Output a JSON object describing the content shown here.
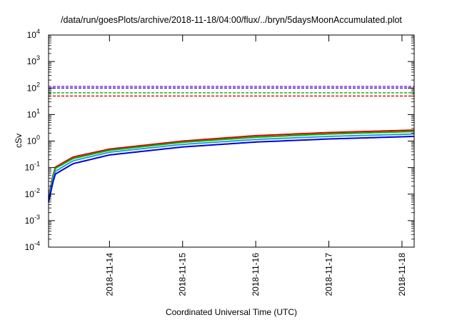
{
  "chart_data": {
    "type": "line",
    "title": "/data/run/goesPlots/archive/2018-11-18/04:00/flux/../bryn/5daysMoonAccumulated.plot",
    "xlabel": "Coordinated Universal Time (UTC)",
    "ylabel": "cSv",
    "y_scale": "log",
    "ylim": [
      0.0001,
      10000
    ],
    "y_ticks": [
      {
        "value": 0.0001,
        "base": "10",
        "exp": "-4"
      },
      {
        "value": 0.001,
        "base": "10",
        "exp": "-3"
      },
      {
        "value": 0.01,
        "base": "10",
        "exp": "-2"
      },
      {
        "value": 0.1,
        "base": "10",
        "exp": "-1"
      },
      {
        "value": 1,
        "base": "10",
        "exp": "0"
      },
      {
        "value": 10,
        "base": "10",
        "exp": "1"
      },
      {
        "value": 100,
        "base": "10",
        "exp": "2"
      },
      {
        "value": 1000,
        "base": "10",
        "exp": "3"
      },
      {
        "value": 10000,
        "base": "10",
        "exp": "4"
      }
    ],
    "xlim": [
      "2018-11-13T04:00",
      "2018-11-18T04:00"
    ],
    "x_ticks": [
      "2018-11-14",
      "2018-11-15",
      "2018-11-16",
      "2018-11-17",
      "2018-11-18"
    ],
    "grid": false,
    "legend": "none",
    "series": [
      {
        "color": "#e00000",
        "style": "solid",
        "x": [
          "2018-11-13T04:00",
          "2018-11-13T06:00",
          "2018-11-13T12:00",
          "2018-11-14T00:00",
          "2018-11-15T00:00",
          "2018-11-16T00:00",
          "2018-11-17T00:00",
          "2018-11-18T04:00"
        ],
        "values": [
          0.008,
          0.1,
          0.25,
          0.5,
          1.0,
          1.6,
          2.1,
          2.6
        ]
      },
      {
        "color": "#00b000",
        "style": "solid",
        "x": [
          "2018-11-13T04:00",
          "2018-11-13T06:00",
          "2018-11-13T12:00",
          "2018-11-14T00:00",
          "2018-11-15T00:00",
          "2018-11-16T00:00",
          "2018-11-17T00:00",
          "2018-11-18T04:00"
        ],
        "values": [
          0.007,
          0.09,
          0.22,
          0.45,
          0.9,
          1.4,
          1.85,
          2.3
        ]
      },
      {
        "color": "#20a0e0",
        "style": "solid",
        "x": [
          "2018-11-13T04:00",
          "2018-11-13T06:00",
          "2018-11-13T12:00",
          "2018-11-14T00:00",
          "2018-11-15T00:00",
          "2018-11-16T00:00",
          "2018-11-17T00:00",
          "2018-11-18T04:00"
        ],
        "values": [
          0.006,
          0.07,
          0.18,
          0.38,
          0.75,
          1.15,
          1.5,
          1.85
        ]
      },
      {
        "color": "#0000e0",
        "style": "solid",
        "x": [
          "2018-11-13T04:00",
          "2018-11-13T06:00",
          "2018-11-13T12:00",
          "2018-11-14T00:00",
          "2018-11-15T00:00",
          "2018-11-16T00:00",
          "2018-11-17T00:00",
          "2018-11-18T04:00"
        ],
        "values": [
          0.005,
          0.055,
          0.14,
          0.3,
          0.6,
          0.92,
          1.2,
          1.5
        ]
      },
      {
        "color": "#e00000",
        "style": "dashed",
        "x": [
          "2018-11-13T04:00",
          "2018-11-18T04:00"
        ],
        "values": [
          50,
          50
        ]
      },
      {
        "color": "#00b000",
        "style": "dashed",
        "x": [
          "2018-11-13T04:00",
          "2018-11-18T04:00"
        ],
        "values": [
          66,
          66
        ]
      },
      {
        "color": "#0000e0",
        "style": "dashed",
        "x": [
          "2018-11-13T04:00",
          "2018-11-18T04:00"
        ],
        "values": [
          100,
          100
        ]
      },
      {
        "color": "#9400d3",
        "style": "dashed",
        "x": [
          "2018-11-13T04:00",
          "2018-11-18T04:00"
        ],
        "values": [
          115,
          115
        ]
      }
    ]
  }
}
